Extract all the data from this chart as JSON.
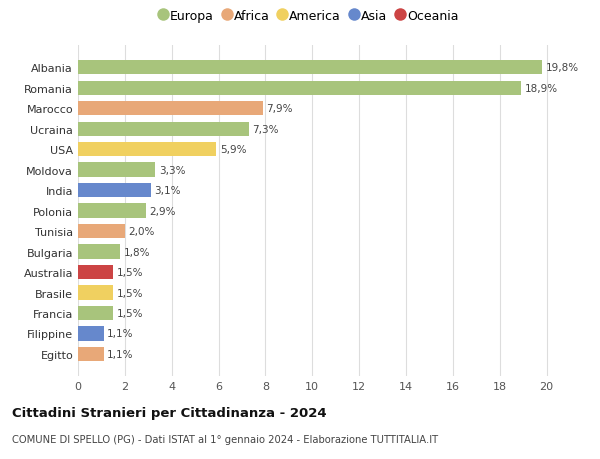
{
  "categories": [
    "Albania",
    "Romania",
    "Marocco",
    "Ucraina",
    "USA",
    "Moldova",
    "India",
    "Polonia",
    "Tunisia",
    "Bulgaria",
    "Australia",
    "Brasile",
    "Francia",
    "Filippine",
    "Egitto"
  ],
  "values": [
    19.8,
    18.9,
    7.9,
    7.3,
    5.9,
    3.3,
    3.1,
    2.9,
    2.0,
    1.8,
    1.5,
    1.5,
    1.5,
    1.1,
    1.1
  ],
  "labels": [
    "19,8%",
    "18,9%",
    "7,9%",
    "7,3%",
    "5,9%",
    "3,3%",
    "3,1%",
    "2,9%",
    "2,0%",
    "1,8%",
    "1,5%",
    "1,5%",
    "1,5%",
    "1,1%",
    "1,1%"
  ],
  "bar_colors": [
    "#a8c47c",
    "#a8c47c",
    "#e8a878",
    "#a8c47c",
    "#f0d060",
    "#a8c47c",
    "#6688cc",
    "#a8c47c",
    "#e8a878",
    "#a8c47c",
    "#cc4444",
    "#f0d060",
    "#a8c47c",
    "#6688cc",
    "#e8a878"
  ],
  "continent_colors": {
    "Europa": "#a8c47c",
    "Africa": "#e8a878",
    "America": "#f0d060",
    "Asia": "#6688cc",
    "Oceania": "#cc4444"
  },
  "legend_labels": [
    "Europa",
    "Africa",
    "America",
    "Asia",
    "Oceania"
  ],
  "xlim": [
    0,
    21
  ],
  "xticks": [
    0,
    2,
    4,
    6,
    8,
    10,
    12,
    14,
    16,
    18,
    20
  ],
  "title": "Cittadini Stranieri per Cittadinanza - 2024",
  "subtitle": "COMUNE DI SPELLO (PG) - Dati ISTAT al 1° gennaio 2024 - Elaborazione TUTTITALIA.IT",
  "background_color": "#ffffff",
  "grid_color": "#dddddd"
}
